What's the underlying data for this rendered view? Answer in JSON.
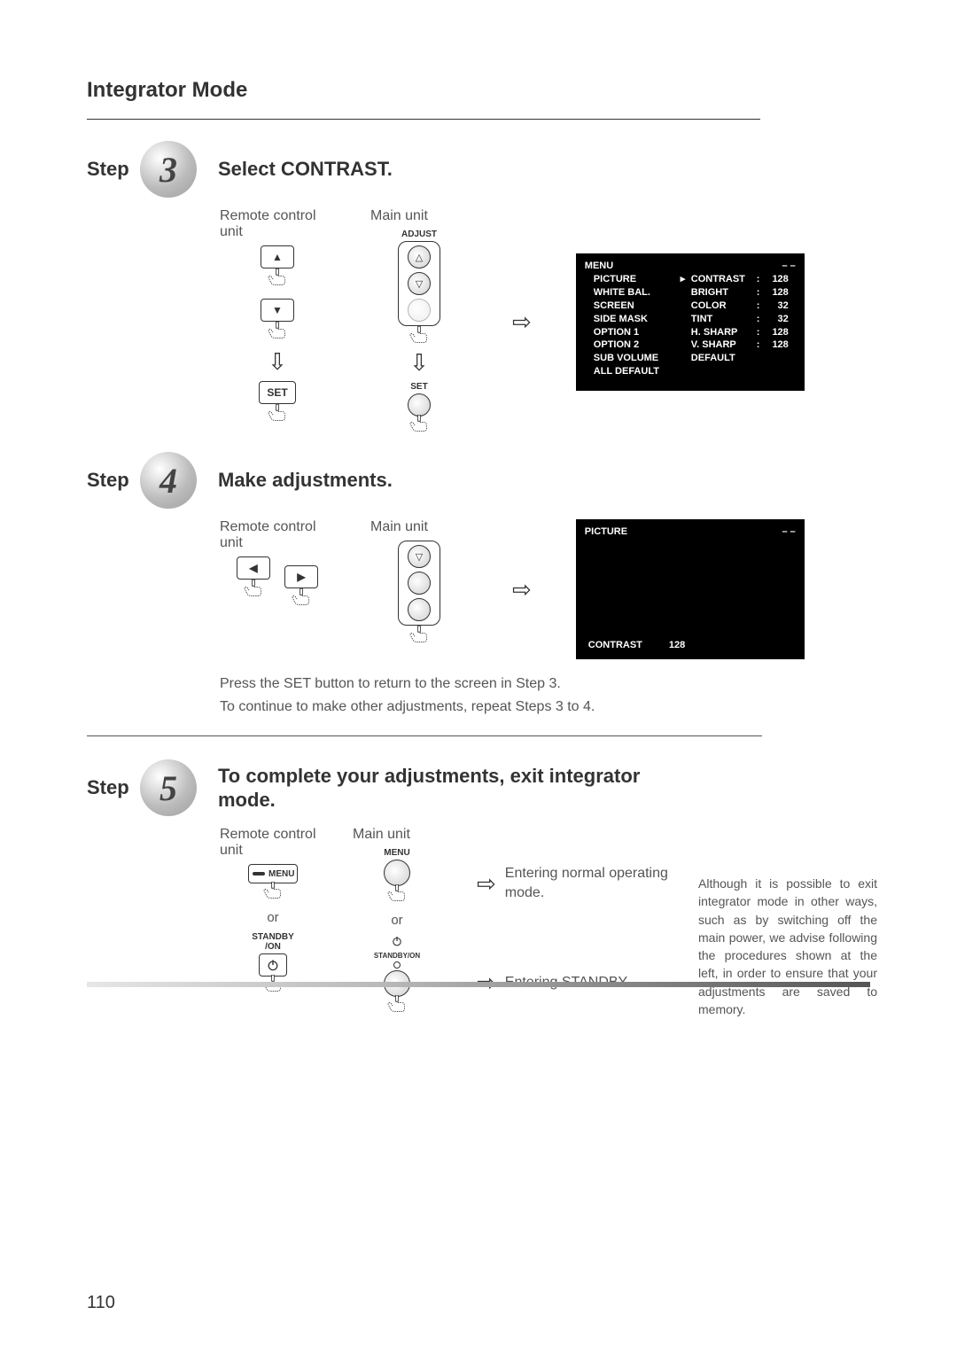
{
  "page": {
    "section_title": "Integrator Mode",
    "page_number": "110",
    "bar_gradient_from": "#e6e6e6",
    "bar_gradient_to": "#555555"
  },
  "step3": {
    "step_word": "Step",
    "number": "3",
    "title": "Select CONTRAST.",
    "remote_label": "Remote control unit",
    "mainunit_label": "Main unit",
    "adjust_label": "ADJUST",
    "set_label_remote": "SET",
    "set_label_main": "SET",
    "menu": {
      "title": "MENU",
      "dash": "– –",
      "left": [
        "PICTURE",
        "WHITE BAL.",
        "SCREEN",
        "SIDE MASK",
        "OPTION 1",
        "OPTION 2",
        "SUB VOLUME",
        "ALL DEFAULT"
      ],
      "right": [
        {
          "label": "CONTRAST",
          "sep": ":",
          "val": "128",
          "selected": true
        },
        {
          "label": "BRIGHT",
          "sep": ":",
          "val": "128"
        },
        {
          "label": "COLOR",
          "sep": ":",
          "val": "32"
        },
        {
          "label": "TINT",
          "sep": ":",
          "val": "32"
        },
        {
          "label": "H. SHARP",
          "sep": ":",
          "val": "128"
        },
        {
          "label": "V. SHARP",
          "sep": ":",
          "val": "128"
        },
        {
          "label": "DEFAULT",
          "sep": "",
          "val": ""
        }
      ]
    }
  },
  "step4": {
    "step_word": "Step",
    "number": "4",
    "title": "Make adjustments.",
    "remote_label": "Remote control unit",
    "mainunit_label": "Main unit",
    "picture_title": "PICTURE",
    "dash": "– –",
    "contrast_label": "CONTRAST",
    "contrast_value": "128",
    "body1": "Press the SET button to return to the screen in Step 3.",
    "body2": "To continue to make other adjustments, repeat Steps 3 to 4."
  },
  "step5": {
    "step_word": "Step",
    "number": "5",
    "title": "To complete your adjustments, exit integrator mode.",
    "remote_label": "Remote control unit",
    "mainunit_label": "Main unit",
    "menu_btn": "MENU",
    "menu_label_main": "MENU",
    "or": "or",
    "standby_label": "STANDBY\n/ON",
    "standby_main_label": "STANDBY/ON",
    "result1": "Entering normal operating mode.",
    "result2": "Entering STANDBY.",
    "note": "Although it is possible to exit integrator mode in other ways, such as by switching off the main power, we advise following the procedures shown at the left, in order to ensure that your adjustments are saved to memory."
  }
}
